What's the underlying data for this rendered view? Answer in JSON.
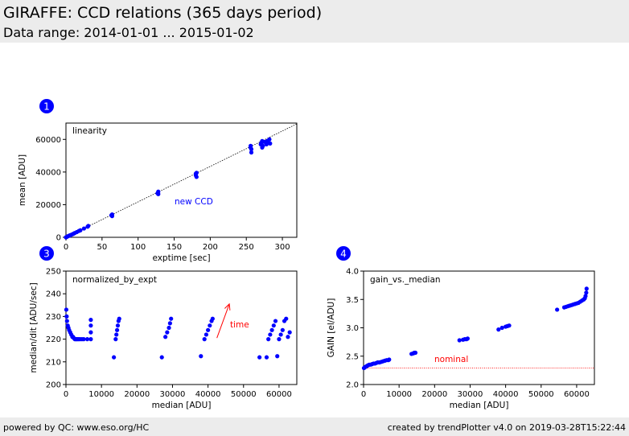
{
  "header": {
    "title": "GIRAFFE: CCD relations (365 days period)",
    "subtitle": "Data range: 2014-01-01 ... 2015-01-02"
  },
  "footer": {
    "left": "powered by QC: www.eso.org/HC",
    "right": "created by trendPlotter v4.0 on 2019-03-28T15:22:44"
  },
  "colors": {
    "points": "#0000ff",
    "annotation": "#ff0000",
    "newccd": "#0000ff",
    "badge": "#0000ff"
  },
  "chart_data": [
    {
      "type": "scatter",
      "badge": "1",
      "title": "linearity",
      "xlabel": "exptime [sec]",
      "ylabel": "mean [ADU]",
      "xlim": [
        0,
        320
      ],
      "ylim": [
        0,
        70000
      ],
      "xticks": [
        0,
        50,
        100,
        150,
        200,
        250,
        300
      ],
      "xtick_labels": [
        "0",
        "50",
        "100",
        "150",
        "200",
        "250",
        "300"
      ],
      "yticks": [
        0,
        20000,
        40000,
        60000
      ],
      "ytick_labels": [
        "0",
        "20000",
        "40000",
        "60000"
      ],
      "fit_line": [
        [
          0,
          0
        ],
        [
          320,
          69500
        ]
      ],
      "note": "new CCD",
      "x": [
        0,
        1,
        2,
        3,
        4,
        5,
        6,
        8,
        10,
        12,
        15,
        18,
        20,
        25,
        30,
        31,
        63,
        64,
        64,
        127,
        128,
        128,
        180,
        180,
        181,
        181,
        256,
        256,
        257,
        257,
        270,
        271,
        272,
        272,
        273,
        275,
        278,
        279,
        280,
        282,
        283
      ],
      "y": [
        0,
        200,
        500,
        700,
        900,
        1100,
        1300,
        1700,
        2100,
        2600,
        3200,
        3900,
        4300,
        5400,
        6500,
        7000,
        13500,
        14000,
        13000,
        27000,
        28000,
        26500,
        38000,
        39000,
        37000,
        39500,
        55000,
        56000,
        52000,
        54000,
        57000,
        58000,
        55000,
        59000,
        56000,
        58500,
        57000,
        59000,
        58000,
        60000,
        57500
      ]
    },
    {
      "type": "scatter",
      "badge": "3",
      "title": "normalized_by_expt",
      "xlabel": "median [ADU]",
      "ylabel": "median/dit [ADU/sec]",
      "xlim": [
        0,
        65000
      ],
      "ylim": [
        200,
        250
      ],
      "xticks": [
        0,
        10000,
        20000,
        30000,
        40000,
        50000,
        60000
      ],
      "xtick_labels": [
        "0",
        "10000",
        "20000",
        "30000",
        "40000",
        "50000",
        "60000"
      ],
      "yticks": [
        200,
        210,
        220,
        230,
        240,
        250
      ],
      "ytick_labels": [
        "200",
        "210",
        "220",
        "230",
        "240",
        "250"
      ],
      "arrow": {
        "from": [
          42500,
          220.5
        ],
        "to": [
          46000,
          235.5
        ]
      },
      "note": "time",
      "x": [
        100,
        200,
        300,
        500,
        700,
        900,
        1200,
        1500,
        1800,
        2000,
        2200,
        2500,
        2800,
        3000,
        3300,
        3600,
        4000,
        4500,
        5000,
        6000,
        7000,
        7000,
        7000,
        7000,
        13500,
        14000,
        14200,
        14400,
        14600,
        14800,
        15000,
        27000,
        28000,
        28500,
        29000,
        29300,
        29600,
        38000,
        39000,
        39500,
        40000,
        40500,
        41000,
        41300,
        54500,
        56500,
        57000,
        57500,
        58000,
        58500,
        59000,
        59500,
        60000,
        60500,
        61000,
        61500,
        62000,
        62500,
        63000
      ],
      "y": [
        233,
        230,
        228,
        226,
        225,
        224,
        223,
        222,
        221,
        221,
        220.5,
        220,
        220,
        220,
        220,
        220,
        220,
        220,
        220,
        220,
        220,
        223,
        226,
        228.5,
        212,
        220,
        222,
        224,
        226,
        228,
        229,
        212,
        221,
        223,
        225,
        227,
        229,
        212.5,
        220,
        222,
        224,
        226,
        228,
        229,
        212,
        212,
        220,
        222,
        224,
        226,
        228,
        212.5,
        220,
        222,
        224,
        228,
        229,
        221,
        223
      ]
    },
    {
      "type": "scatter",
      "badge": "4",
      "title": "gain_vs._median",
      "xlabel": "median [ADU]",
      "ylabel": "GAIN [el/ADU]",
      "xlim": [
        0,
        65000
      ],
      "ylim": [
        2.0,
        4.0
      ],
      "xticks": [
        0,
        10000,
        20000,
        30000,
        40000,
        50000,
        60000
      ],
      "xtick_labels": [
        "0",
        "10000",
        "20000",
        "30000",
        "40000",
        "50000",
        "60000"
      ],
      "yticks": [
        2.0,
        2.5,
        3.0,
        3.5,
        4.0
      ],
      "ytick_labels": [
        "2.0",
        "2.5",
        "3.0",
        "3.5",
        "4.0"
      ],
      "hline": 2.29,
      "note": "nominal",
      "x": [
        100,
        300,
        500,
        800,
        1000,
        1300,
        1600,
        2000,
        2400,
        2800,
        3200,
        3600,
        4000,
        4500,
        5000,
        5500,
        6000,
        6500,
        7000,
        7200,
        13500,
        14000,
        14300,
        14600,
        27000,
        28000,
        28500,
        29000,
        29300,
        38000,
        39000,
        40000,
        40500,
        41000,
        54500,
        56500,
        57000,
        57500,
        58000,
        58500,
        59000,
        59500,
        60000,
        60500,
        61000,
        61500,
        62000,
        62300,
        62500,
        62700,
        62800
      ],
      "y": [
        2.29,
        2.3,
        2.31,
        2.32,
        2.33,
        2.34,
        2.35,
        2.35,
        2.36,
        2.37,
        2.37,
        2.38,
        2.39,
        2.39,
        2.4,
        2.41,
        2.42,
        2.43,
        2.43,
        2.44,
        2.54,
        2.55,
        2.56,
        2.56,
        2.78,
        2.79,
        2.8,
        2.8,
        2.81,
        2.97,
        3.0,
        3.02,
        3.03,
        3.04,
        3.32,
        3.36,
        3.37,
        3.38,
        3.39,
        3.4,
        3.41,
        3.42,
        3.43,
        3.44,
        3.46,
        3.48,
        3.5,
        3.52,
        3.56,
        3.62,
        3.69
      ]
    }
  ]
}
